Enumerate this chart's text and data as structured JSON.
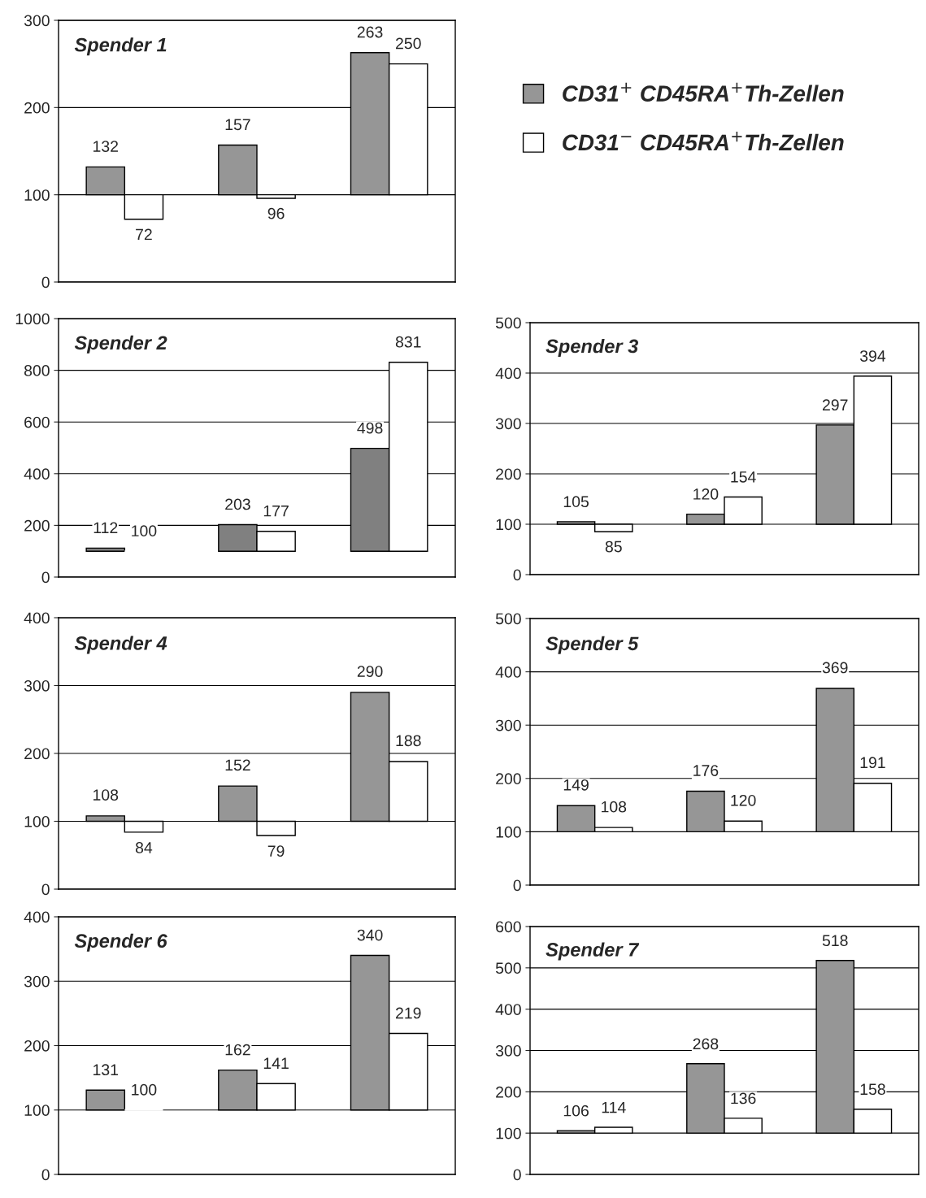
{
  "chart_data": [
    {
      "type": "bar",
      "title": "Spender 1",
      "categories": [
        null,
        null,
        null
      ],
      "ylim": [
        0,
        300
      ],
      "yticks": [
        0,
        100,
        200,
        300
      ],
      "grid": "y",
      "legend": "right",
      "series": [
        {
          "name": "CD31$^{+}$ CD45RA$^{+}$Th-Zellen",
          "color": "#969696",
          "base": [
            100,
            100,
            100
          ],
          "values": [
            32,
            57,
            163
          ],
          "value_labels": [
            "132",
            "157",
            "263"
          ]
        },
        {
          "name": "CD31$^{−}$ CD45RA$^{+}$Th-Zellen",
          "color": "#ffffff",
          "base": [
            100,
            100,
            100
          ],
          "values": [
            -28,
            -4,
            150
          ],
          "value_labels": [
            "72",
            "96",
            "250"
          ]
        }
      ]
    },
    {
      "type": "bar",
      "title": "Spender 2",
      "categories": [
        null,
        null,
        null
      ],
      "ylim": [
        0,
        1000
      ],
      "yticks": [
        0,
        200,
        400,
        600,
        800,
        1000
      ],
      "grid": "y",
      "series": [
        {
          "color": "#808080",
          "base": [
            100,
            100,
            100
          ],
          "values": [
            12,
            103,
            398
          ],
          "value_labels": [
            "112",
            "203",
            "498"
          ]
        },
        {
          "color": "#ffffff",
          "base": [
            100,
            100,
            100
          ],
          "values": [
            0,
            77,
            731
          ],
          "value_labels": [
            "100",
            "177",
            "831"
          ]
        }
      ]
    },
    {
      "type": "bar",
      "title": "Spender 3",
      "categories": [
        null,
        null,
        null
      ],
      "ylim": [
        0,
        500
      ],
      "yticks": [
        0,
        100,
        200,
        300,
        400,
        500
      ],
      "grid": "y",
      "series": [
        {
          "color": "#969696",
          "base": [
            100,
            100,
            100
          ],
          "values": [
            5,
            20,
            197
          ],
          "value_labels": [
            "105",
            "120",
            "297"
          ]
        },
        {
          "color": "#ffffff",
          "base": [
            100,
            100,
            100
          ],
          "values": [
            -15,
            54,
            294
          ],
          "value_labels": [
            "85",
            "154",
            "394"
          ]
        }
      ]
    },
    {
      "type": "bar",
      "title": "Spender 4",
      "categories": [
        null,
        null,
        null
      ],
      "ylim": [
        0,
        400
      ],
      "yticks": [
        0,
        100,
        200,
        300,
        400
      ],
      "grid": "y",
      "series": [
        {
          "color": "#969696",
          "base": [
            100,
            100,
            100
          ],
          "values": [
            8,
            52,
            190
          ],
          "value_labels": [
            "108",
            "152",
            "290"
          ]
        },
        {
          "color": "#ffffff",
          "base": [
            100,
            100,
            100
          ],
          "values": [
            -16,
            -21,
            88
          ],
          "value_labels": [
            "84",
            "79",
            "188"
          ]
        }
      ]
    },
    {
      "type": "bar",
      "title": "Spender 5",
      "categories": [
        null,
        null,
        null
      ],
      "ylim": [
        0,
        500
      ],
      "yticks": [
        0,
        100,
        200,
        300,
        400,
        500
      ],
      "grid": "y",
      "series": [
        {
          "color": "#969696",
          "base": [
            100,
            100,
            100
          ],
          "values": [
            49,
            76,
            269
          ],
          "value_labels": [
            "149",
            "176",
            "369"
          ]
        },
        {
          "color": "#ffffff",
          "base": [
            100,
            100,
            100
          ],
          "values": [
            8,
            20,
            91
          ],
          "value_labels": [
            "108",
            "120",
            "191"
          ]
        }
      ]
    },
    {
      "type": "bar",
      "title": "Spender 6",
      "categories": [
        null,
        null,
        null
      ],
      "ylim": [
        0,
        400
      ],
      "yticks": [
        0,
        100,
        200,
        300,
        400
      ],
      "grid": "y",
      "series": [
        {
          "color": "#969696",
          "base": [
            100,
            100,
            100
          ],
          "values": [
            31,
            62,
            240
          ],
          "value_labels": [
            "131",
            "162",
            "340"
          ]
        },
        {
          "color": "#ffffff",
          "base": [
            100,
            100,
            100
          ],
          "values": [
            0,
            41,
            119
          ],
          "value_labels": [
            "100",
            "141",
            "219"
          ]
        }
      ]
    },
    {
      "type": "bar",
      "title": "Spender 7",
      "categories": [
        null,
        null,
        null
      ],
      "ylim": [
        0,
        600
      ],
      "yticks": [
        0,
        100,
        200,
        300,
        400,
        500,
        600
      ],
      "grid": "y",
      "series": [
        {
          "color": "#969696",
          "base": [
            100,
            100,
            100
          ],
          "values": [
            6,
            168,
            418
          ],
          "value_labels": [
            "106",
            "268",
            "518"
          ]
        },
        {
          "color": "#ffffff",
          "base": [
            100,
            100,
            100
          ],
          "values": [
            14,
            36,
            58
          ],
          "value_labels": [
            "114",
            "136",
            "158"
          ]
        }
      ]
    }
  ]
}
